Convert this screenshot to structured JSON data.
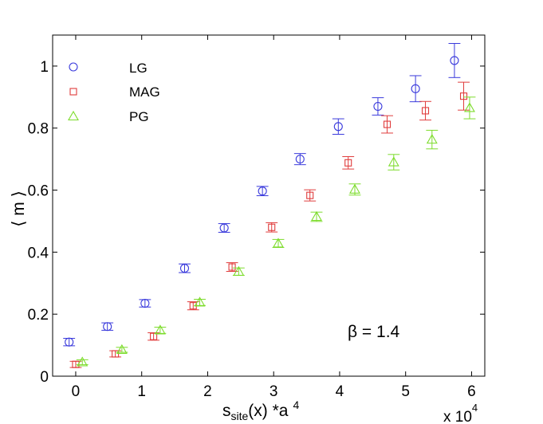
{
  "chart_data": {
    "type": "scatter",
    "title": "",
    "xlabel_main": "s",
    "xlabel_sub": "site",
    "xlabel_rest": "(x) *a",
    "xlabel_sup": "4",
    "ylabel": "⟨ m ⟩",
    "x_multiplier_base": "x 10",
    "x_multiplier_exp": "4",
    "xlim": [
      -0.35,
      6.2
    ],
    "ylim": [
      0,
      1.1
    ],
    "xticks": [
      0,
      1,
      2,
      3,
      4,
      5,
      6
    ],
    "xtick_labels": [
      "0",
      "1",
      "2",
      "3",
      "4",
      "5",
      "6"
    ],
    "yticks": [
      0,
      0.2,
      0.4,
      0.6,
      0.8,
      1.0
    ],
    "ytick_labels": [
      "0",
      "0.2",
      "0.4",
      "0.6",
      "0.8",
      "1"
    ],
    "annotation": "β = 1.4",
    "series": [
      {
        "name": "LG",
        "marker": "circle",
        "color": "#3a3adc",
        "x": [
          -0.1,
          0.48,
          1.05,
          1.65,
          2.25,
          2.83,
          3.4,
          3.98,
          4.58,
          5.15,
          5.74
        ],
        "y": [
          0.11,
          0.16,
          0.235,
          0.348,
          0.478,
          0.597,
          0.7,
          0.805,
          0.87,
          0.927,
          1.018
        ],
        "err": [
          0.012,
          0.012,
          0.012,
          0.014,
          0.014,
          0.015,
          0.018,
          0.025,
          0.028,
          0.042,
          0.055
        ],
        "xerr": 0.09
      },
      {
        "name": "MAG",
        "marker": "square",
        "color": "#e03c3c",
        "x": [
          0.0,
          0.6,
          1.18,
          1.78,
          2.37,
          2.97,
          3.55,
          4.13,
          4.72,
          5.3,
          5.88
        ],
        "y": [
          0.038,
          0.072,
          0.128,
          0.227,
          0.352,
          0.48,
          0.583,
          0.688,
          0.812,
          0.856,
          0.903
        ],
        "err": [
          0.01,
          0.01,
          0.012,
          0.013,
          0.014,
          0.015,
          0.018,
          0.02,
          0.028,
          0.03,
          0.045
        ],
        "xerr": 0.09
      },
      {
        "name": "PG",
        "marker": "triangle",
        "color": "#7ddc2c",
        "x": [
          0.1,
          0.7,
          1.28,
          1.88,
          2.47,
          3.07,
          3.65,
          4.23,
          4.82,
          5.4,
          5.97
        ],
        "y": [
          0.045,
          0.085,
          0.148,
          0.238,
          0.337,
          0.428,
          0.514,
          0.602,
          0.69,
          0.763,
          0.865
        ],
        "err": [
          0.008,
          0.008,
          0.01,
          0.01,
          0.012,
          0.013,
          0.015,
          0.018,
          0.025,
          0.03,
          0.035
        ],
        "xerr": 0.09
      }
    ]
  }
}
